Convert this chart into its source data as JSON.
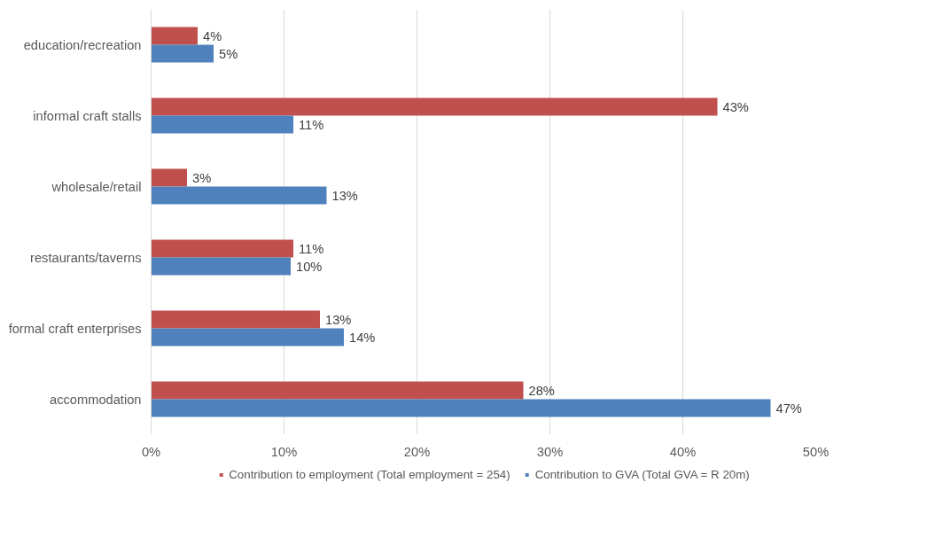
{
  "chart_data": {
    "type": "bar",
    "orientation": "horizontal",
    "categories": [
      "education/recreation",
      "informal craft stalls",
      "wholesale/retail",
      "restaurants/taverns",
      "formal craft enterprises",
      "accommodation"
    ],
    "series": [
      {
        "name": "Contribution to employment (Total employment = 254)",
        "color": "#c0504d",
        "values": [
          3.5,
          42.6,
          2.7,
          10.7,
          12.7,
          28.0
        ],
        "value_labels": [
          "4%",
          "43%",
          "3%",
          "11%",
          "13%",
          "28%"
        ]
      },
      {
        "name": "Contribution to GVA (Total GVA = R 20m)",
        "color": "#4f81bd",
        "values": [
          4.7,
          10.7,
          13.2,
          10.5,
          14.5,
          46.6
        ],
        "value_labels": [
          "5%",
          "11%",
          "13%",
          "10%",
          "14%",
          "47%"
        ]
      }
    ],
    "xlim": [
      0,
      50
    ],
    "xticks": [
      {
        "value": 0,
        "label": "0%"
      },
      {
        "value": 10,
        "label": "10%"
      },
      {
        "value": 20,
        "label": "20%"
      },
      {
        "value": 30,
        "label": "30%"
      },
      {
        "value": 40,
        "label": "40%"
      },
      {
        "value": 50,
        "label": "50%"
      }
    ],
    "grid": "x",
    "legend": "bottom"
  }
}
